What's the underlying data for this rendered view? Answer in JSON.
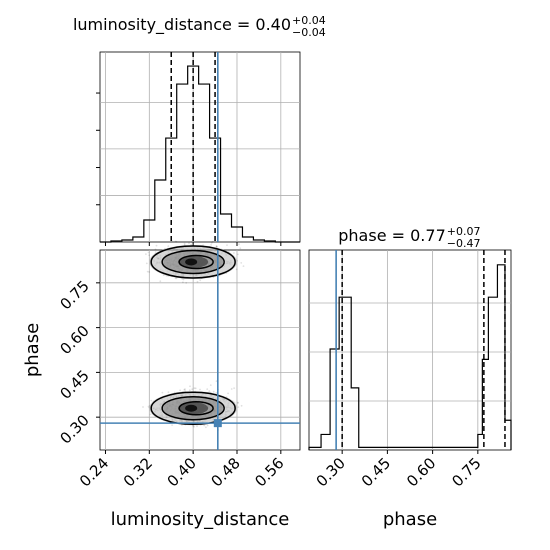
{
  "chart_data": {
    "type": "corner",
    "parameters": [
      "luminosity_distance",
      "phase"
    ],
    "truth": {
      "luminosity_distance": 0.445,
      "phase": 0.28
    },
    "titles": [
      {
        "name": "luminosity_distance",
        "value": "0.40",
        "plus": "+0.04",
        "minus": "−0.04"
      },
      {
        "name": "phase",
        "value": "0.77",
        "plus": "+0.07",
        "minus": "−0.47"
      }
    ],
    "xlabels": [
      "luminosity_distance",
      "phase"
    ],
    "ylabel": "phase",
    "luminosity_distance_axis": {
      "range": [
        0.23,
        0.595
      ],
      "ticks": [
        0.24,
        0.32,
        0.4,
        0.48,
        0.56
      ],
      "tick_labels": [
        "0.24",
        "0.32",
        "0.40",
        "0.48",
        "0.56"
      ]
    },
    "phase_axis": {
      "range": [
        0.19,
        0.86
      ],
      "ticks": [
        0.3,
        0.45,
        0.6,
        0.75
      ],
      "tick_labels": [
        "0.30",
        "0.45",
        "0.60",
        "0.75"
      ]
    },
    "luminosity_distance_hist": {
      "quantiles": [
        0.36,
        0.4,
        0.44
      ],
      "bin_edges": [
        0.23,
        0.25,
        0.27,
        0.29,
        0.31,
        0.33,
        0.35,
        0.37,
        0.39,
        0.41,
        0.43,
        0.45,
        0.47,
        0.49,
        0.51,
        0.53,
        0.55,
        0.57,
        0.595
      ],
      "counts": [
        0,
        1,
        2,
        5,
        22,
        62,
        104,
        158,
        176,
        158,
        104,
        28,
        15,
        5,
        2,
        1,
        0,
        0
      ]
    },
    "phase_hist": {
      "quantiles": [
        0.3,
        0.77,
        0.84
      ],
      "bin_edges": [
        0.19,
        0.23,
        0.26,
        0.29,
        0.31,
        0.33,
        0.355,
        0.38,
        0.75,
        0.765,
        0.785,
        0.815,
        0.84,
        0.86
      ],
      "counts": [
        2,
        12,
        78,
        118,
        118,
        48,
        2,
        2,
        12,
        70,
        118,
        143,
        23
      ]
    },
    "modes": [
      {
        "luminosity_distance": 0.4,
        "phase": 0.33
      },
      {
        "luminosity_distance": 0.4,
        "phase": 0.82
      }
    ]
  }
}
